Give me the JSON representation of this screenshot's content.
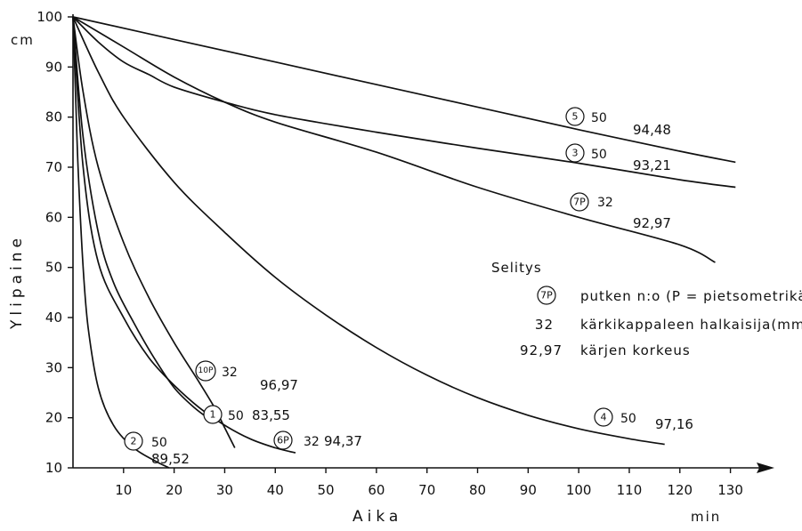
{
  "chart_data": {
    "type": "line",
    "xlabel": "Aika",
    "ylabel": "Ylipaine",
    "x_unit": "min",
    "y_unit": "cm",
    "xlim": [
      0,
      135
    ],
    "ylim": [
      10,
      100
    ],
    "x_ticks": [
      10,
      20,
      30,
      40,
      50,
      60,
      70,
      80,
      90,
      100,
      110,
      120,
      130
    ],
    "y_ticks": [
      10,
      20,
      30,
      40,
      50,
      60,
      70,
      80,
      90,
      100
    ],
    "grid": false,
    "series": [
      {
        "id": "5",
        "marker": "5",
        "diameter": "50",
        "elevation": "94,48",
        "x": [
          0,
          20,
          40,
          60,
          80,
          100,
          120,
          131
        ],
        "y": [
          100,
          95.5,
          91,
          86.5,
          82,
          77.5,
          73.2,
          71
        ]
      },
      {
        "id": "3",
        "marker": "3",
        "diameter": "50",
        "elevation": "93,21",
        "x": [
          0,
          5,
          10,
          15,
          20,
          30,
          40,
          60,
          80,
          100,
          120,
          131
        ],
        "y": [
          100,
          95,
          91,
          88.5,
          86,
          83,
          80.5,
          77,
          73.8,
          70.8,
          67.5,
          66
        ]
      },
      {
        "id": "7P",
        "marker": "7P",
        "diameter": "32",
        "elevation": "92,97",
        "x": [
          0,
          10,
          20,
          30,
          40,
          60,
          80,
          100,
          120,
          127
        ],
        "y": [
          100,
          94,
          88,
          83,
          79,
          73,
          66,
          60,
          54.5,
          51
        ]
      },
      {
        "id": "4",
        "marker": "4",
        "diameter": "50",
        "elevation": "97,16",
        "x": [
          0,
          5,
          10,
          20,
          30,
          40,
          50,
          60,
          70,
          80,
          90,
          100,
          110,
          117
        ],
        "y": [
          100,
          89,
          80,
          67,
          57,
          48,
          40.5,
          34,
          28.5,
          24,
          20.5,
          17.8,
          15.8,
          14.7
        ]
      },
      {
        "id": "10P",
        "marker": "10P",
        "diameter": "32",
        "elevation": "96,97",
        "x": [
          0,
          2,
          5,
          10,
          15,
          20,
          25,
          28,
          30,
          32
        ],
        "y": [
          100,
          85,
          70,
          55,
          44,
          35,
          27,
          22,
          18,
          14
        ]
      },
      {
        "id": "1",
        "marker": "1",
        "diameter": "50",
        "elevation": "83,55",
        "x": [
          0,
          2,
          5,
          8,
          12,
          16,
          20,
          24,
          28
        ],
        "y": [
          100,
          76,
          57,
          47,
          39,
          32,
          26,
          22,
          19
        ]
      },
      {
        "id": "6P",
        "marker": "6P",
        "diameter": "32",
        "elevation": "94,37",
        "x": [
          0,
          2,
          5,
          10,
          15,
          20,
          25,
          30,
          35,
          40,
          44
        ],
        "y": [
          100,
          70,
          51,
          40,
          32,
          26.5,
          22,
          18.5,
          15.8,
          14,
          13
        ]
      },
      {
        "id": "2",
        "marker": "2",
        "diameter": "50",
        "elevation": "89,52",
        "x": [
          0,
          0.5,
          1,
          2,
          3,
          5,
          8,
          12,
          16,
          19
        ],
        "y": [
          100,
          85,
          70,
          50,
          38,
          26,
          18.5,
          14,
          11.5,
          10
        ]
      }
    ],
    "legend": {
      "title": "Selitys",
      "rows": [
        {
          "symbol": "7P",
          "text": "putken n:o (P = pietsometrikärki)"
        },
        {
          "symbol": "32",
          "text": "kärkikappaleen halkaisija(mm)"
        },
        {
          "symbol": "92,97",
          "text": "kärjen korkeus"
        }
      ]
    }
  }
}
